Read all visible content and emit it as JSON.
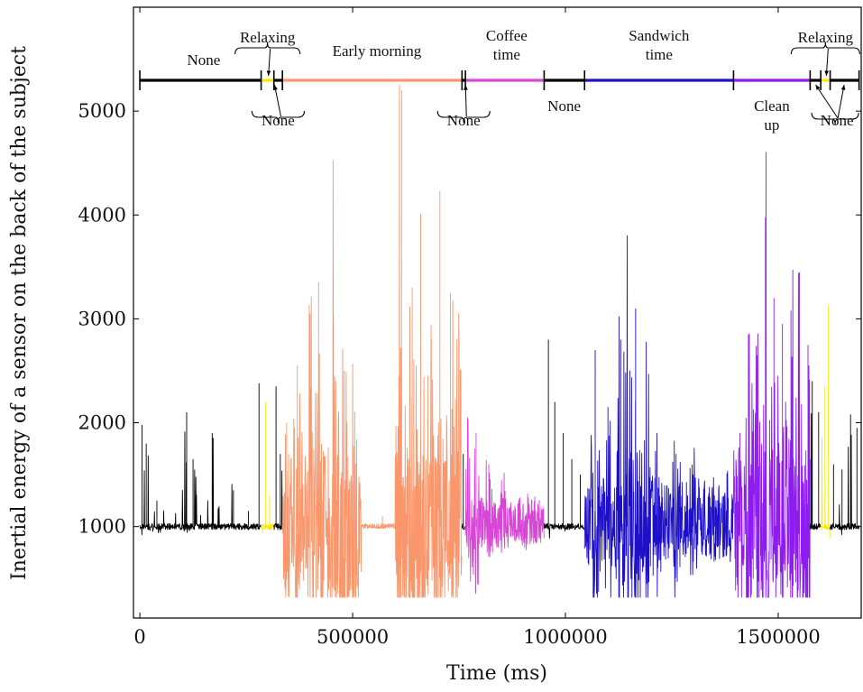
{
  "chart_data": {
    "type": "line",
    "title": "",
    "xlabel": "Time (ms)",
    "ylabel": "Inertial energy of a sensor on the back of the subject",
    "xlim": [
      -15000,
      1695000
    ],
    "ylim": [
      120,
      6000
    ],
    "x_ticks": [
      0,
      500000,
      1000000,
      1500000
    ],
    "x_tick_labels": [
      "0",
      "500000",
      "1000000",
      "1500000"
    ],
    "y_ticks": [
      1000,
      2000,
      3000,
      4000,
      5000
    ],
    "y_tick_labels": [
      "1000",
      "2000",
      "3000",
      "4000",
      "5000"
    ],
    "grid": false,
    "baseline": 1000,
    "segments": [
      {
        "label": "None",
        "start": 0,
        "end": 285000,
        "color": "#000000",
        "peaks": [
          [
            5000,
            1980
          ],
          [
            15000,
            1800
          ],
          [
            40000,
            1250
          ],
          [
            110000,
            2100
          ],
          [
            125000,
            1650
          ],
          [
            170000,
            1900
          ],
          [
            220000,
            1350
          ],
          [
            255000,
            1150
          ],
          [
            280000,
            2380
          ]
        ]
      },
      {
        "label": "Relaxing",
        "start": 285000,
        "end": 315000,
        "color": "#FFE600",
        "peaks": [
          [
            295000,
            2200
          ],
          [
            305000,
            1300
          ]
        ]
      },
      {
        "label": "None",
        "start": 315000,
        "end": 335000,
        "color": "#000000",
        "peaks": [
          [
            320000,
            2350
          ],
          [
            330000,
            1700
          ]
        ]
      },
      {
        "label": "Early morning",
        "start": 335000,
        "end": 757000,
        "color": "#F9966B",
        "peaks": [
          [
            345000,
            2000
          ],
          [
            370000,
            2550
          ],
          [
            400000,
            3050
          ],
          [
            420000,
            3350
          ],
          [
            455000,
            3030
          ],
          [
            480000,
            2500
          ],
          [
            505000,
            2100
          ],
          [
            570000,
            1100
          ],
          [
            615000,
            5200
          ],
          [
            640000,
            3300
          ],
          [
            660000,
            4010
          ],
          [
            685000,
            2800
          ],
          [
            705000,
            4230
          ],
          [
            730000,
            3250
          ],
          [
            750000,
            2900
          ]
        ]
      },
      {
        "label": "None",
        "start": 757000,
        "end": 765000,
        "color": "#000000",
        "peaks": [
          [
            760000,
            1700
          ]
        ]
      },
      {
        "label": "Coffee time",
        "start": 765000,
        "end": 950000,
        "color": "#D846D8",
        "peaks": [
          [
            770000,
            2050
          ],
          [
            790000,
            1900
          ],
          [
            820000,
            1600
          ],
          [
            850000,
            1450
          ],
          [
            900000,
            1200
          ],
          [
            930000,
            1150
          ]
        ]
      },
      {
        "label": "None",
        "start": 950000,
        "end": 1045000,
        "color": "#000000",
        "peaks": [
          [
            960000,
            2800
          ],
          [
            975000,
            2200
          ],
          [
            995000,
            1900
          ],
          [
            1015000,
            1650
          ],
          [
            1035000,
            1500
          ]
        ]
      },
      {
        "label": "Sandwich time",
        "start": 1045000,
        "end": 1395000,
        "color": "#1E10C8",
        "peaks": [
          [
            1070000,
            2700
          ],
          [
            1100000,
            2150
          ],
          [
            1130000,
            2800
          ],
          [
            1145000,
            3550
          ],
          [
            1165000,
            3100
          ],
          [
            1190000,
            2350
          ],
          [
            1215000,
            1900
          ],
          [
            1260000,
            1700
          ],
          [
            1300000,
            1500
          ],
          [
            1350000,
            1300
          ],
          [
            1380000,
            1200
          ]
        ]
      },
      {
        "label": "Clean up",
        "start": 1395000,
        "end": 1575000,
        "color": "#8E1CF0",
        "peaks": [
          [
            1410000,
            1900
          ],
          [
            1430000,
            2850
          ],
          [
            1450000,
            2650
          ],
          [
            1470000,
            3980
          ],
          [
            1490000,
            3200
          ],
          [
            1510000,
            2950
          ],
          [
            1530000,
            3080
          ],
          [
            1550000,
            3450
          ],
          [
            1570000,
            2750
          ]
        ]
      },
      {
        "label": "None",
        "start": 1575000,
        "end": 1600000,
        "color": "#000000",
        "peaks": [
          [
            1580000,
            2400
          ],
          [
            1595000,
            2100
          ]
        ]
      },
      {
        "label": "Relaxing",
        "start": 1600000,
        "end": 1622000,
        "color": "#FFE600",
        "peaks": [
          [
            1610000,
            2350
          ],
          [
            1618000,
            3130
          ]
        ]
      },
      {
        "label": "None",
        "start": 1622000,
        "end": 1690000,
        "color": "#000000",
        "peaks": [
          [
            1630000,
            1600
          ],
          [
            1650000,
            1550
          ],
          [
            1670000,
            2080
          ],
          [
            1685000,
            1950
          ]
        ]
      }
    ],
    "annotations": {
      "top": [
        {
          "text": "None",
          "lines": [
            "None"
          ],
          "x": 150000
        },
        {
          "text": "Relaxing",
          "lines": [
            "Relaxing"
          ],
          "x": 300000
        },
        {
          "text": "Early morning",
          "lines": [
            "Early morning"
          ],
          "x": 557000
        },
        {
          "text": "Coffee time",
          "lines": [
            "Coffee",
            "time"
          ],
          "x": 862000
        },
        {
          "text": "Sandwich time",
          "lines": [
            "Sandwich",
            "time"
          ],
          "x": 1220000
        },
        {
          "text": "Relaxing",
          "lines": [
            "Relaxing"
          ],
          "x": 1611000
        }
      ],
      "bottom": [
        {
          "text": "None",
          "lines": [
            "None"
          ],
          "x": 325000
        },
        {
          "text": "None",
          "lines": [
            "None"
          ],
          "x": 761000
        },
        {
          "text": "None",
          "lines": [
            "None"
          ],
          "x": 997000
        },
        {
          "text": "Clean up",
          "lines": [
            "Clean",
            "up"
          ],
          "x": 1485000
        },
        {
          "text": "None",
          "lines": [
            "None"
          ],
          "x": 1638000
        }
      ]
    }
  }
}
